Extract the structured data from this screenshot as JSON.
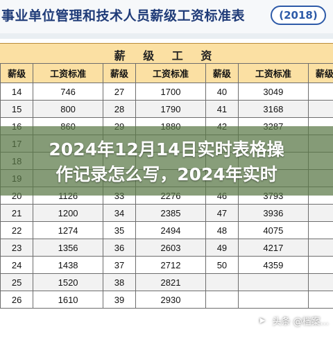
{
  "header": {
    "title": "事业单位管理和技术人员薪级工资标准表",
    "year": "(2018)"
  },
  "table": {
    "banner": "薪 级 工 资",
    "columns": [
      "薪级",
      "工资标准",
      "薪级",
      "工资标准",
      "薪级",
      "工资标准",
      "薪级"
    ],
    "rows": [
      [
        "14",
        "746",
        "27",
        "1700",
        "40",
        "3049",
        ""
      ],
      [
        "15",
        "800",
        "28",
        "1790",
        "41",
        "3168",
        ""
      ],
      [
        "16",
        "860",
        "29",
        "1880",
        "42",
        "3287",
        ""
      ],
      [
        "17",
        "",
        "",
        "",
        "",
        "",
        ""
      ],
      [
        "18",
        "",
        "",
        "",
        "",
        "",
        ""
      ],
      [
        "19",
        "",
        "",
        "",
        "",
        "",
        ""
      ],
      [
        "20",
        "1126",
        "33",
        "2276",
        "46",
        "3793",
        ""
      ],
      [
        "21",
        "1200",
        "34",
        "2385",
        "47",
        "3936",
        ""
      ],
      [
        "22",
        "1274",
        "35",
        "2494",
        "48",
        "4075",
        ""
      ],
      [
        "23",
        "1356",
        "36",
        "2603",
        "49",
        "4217",
        ""
      ],
      [
        "24",
        "1438",
        "37",
        "2712",
        "50",
        "4359",
        ""
      ],
      [
        "25",
        "1520",
        "38",
        "2821",
        "",
        "",
        ""
      ],
      [
        "26",
        "1610",
        "39",
        "2930",
        "",
        "",
        ""
      ]
    ]
  },
  "overlay": {
    "line1": "2024年12月14日实时表格操",
    "line2": "作记录怎么写，2024年实时"
  },
  "watermark": {
    "icon": "toutiao-icon",
    "text": "头条 @档案..."
  }
}
